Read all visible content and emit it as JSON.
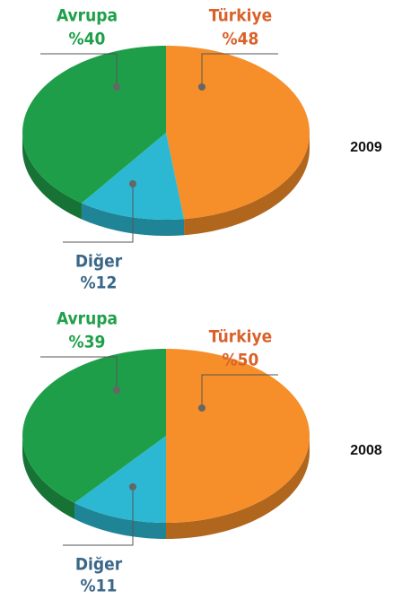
{
  "chart_data": [
    {
      "type": "pie",
      "title": "2009",
      "categories": [
        "Avrupa",
        "Türkiye",
        "Diğer"
      ],
      "values": [
        40,
        48,
        12
      ],
      "value_labels": [
        "%40",
        "%48",
        "%12"
      ],
      "colors": [
        "#1f9e4a",
        "#f68e2a",
        "#2cb8d2"
      ],
      "label_colors": [
        "#1fa04a",
        "#d9622a",
        "#3a6688"
      ]
    },
    {
      "type": "pie",
      "title": "2008",
      "categories": [
        "Avrupa",
        "Türkiye",
        "Diğer"
      ],
      "values": [
        39,
        50,
        11
      ],
      "value_labels": [
        "%39",
        "%50",
        "%11"
      ],
      "colors": [
        "#1f9e4a",
        "#f68e2a",
        "#2cb8d2"
      ],
      "label_colors": [
        "#1fa04a",
        "#d9622a",
        "#3a6688"
      ]
    }
  ]
}
